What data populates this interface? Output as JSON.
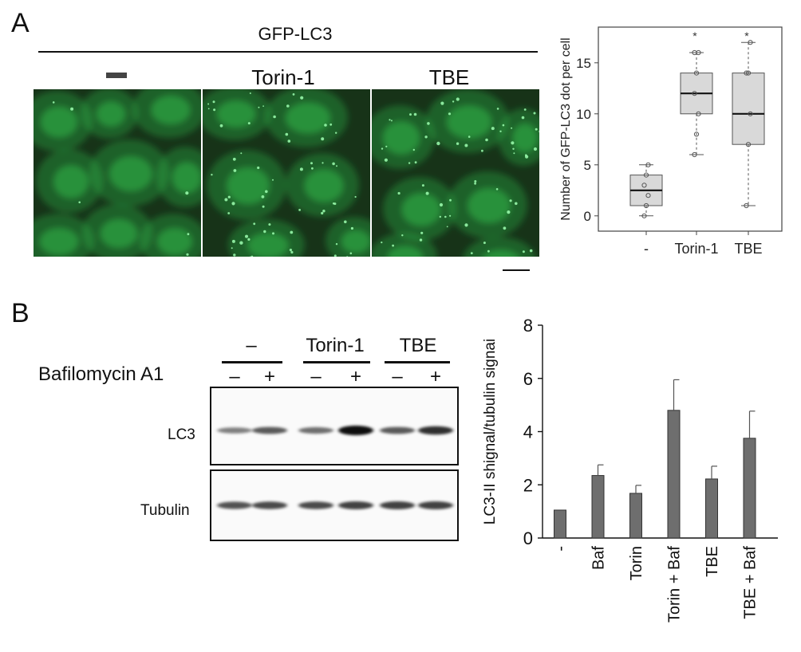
{
  "panelA": {
    "letter": "A",
    "header": "GFP-LC3",
    "conditions": [
      {
        "label": "",
        "symbol": "dash"
      },
      {
        "label": "Torin-1"
      },
      {
        "label": "TBE"
      }
    ],
    "colors": {
      "gfp": "#2fb84a",
      "background": "#173318"
    }
  },
  "panelB": {
    "letter": "B",
    "treatments": [
      "–",
      "Torin-1",
      "TBE"
    ],
    "bafilomycin_label": "Bafilomycin A1",
    "signs": [
      "–",
      "+",
      "–",
      "+",
      "–",
      "+"
    ],
    "blot_labels": {
      "lc3": "LC3",
      "tubulin": "Tubulin"
    },
    "lc3_band_intensity": [
      0.35,
      0.55,
      0.45,
      1.0,
      0.55,
      0.8
    ],
    "tubulin_band_intensity": [
      0.6,
      0.65,
      0.65,
      0.7,
      0.7,
      0.7
    ]
  },
  "chart_data": [
    {
      "type": "box",
      "ylabel": "Number of GFP-LC3 dot per cell",
      "categories": [
        "-",
        "Torin-1",
        "TBE"
      ],
      "ylim": [
        -1.5,
        18.5
      ],
      "yticks": [
        0,
        5,
        10,
        15
      ],
      "boxes": [
        {
          "min": 0,
          "q1": 1,
          "median": 2.5,
          "q3": 4,
          "max": 5,
          "significance": ""
        },
        {
          "min": 6,
          "q1": 10,
          "median": 12,
          "q3": 14,
          "max": 16,
          "significance": "*"
        },
        {
          "min": 1,
          "q1": 7,
          "median": 10,
          "q3": 14,
          "max": 17,
          "significance": "*"
        }
      ],
      "points": [
        [
          0,
          1,
          2,
          3,
          4,
          5
        ],
        [
          6,
          8,
          10,
          12,
          14,
          16,
          16
        ],
        [
          1,
          7,
          10,
          14,
          14,
          17
        ]
      ],
      "colors": {
        "box": "#d9d9d9",
        "stroke": "#555555"
      }
    },
    {
      "type": "bar",
      "ylabel": "LC3-II shignal/tubulin signai",
      "categories": [
        "-",
        "Baf",
        "Torin",
        "Torin + Baf",
        "TBE",
        "TBE + Baf"
      ],
      "values": [
        1.05,
        2.35,
        1.68,
        4.8,
        2.22,
        3.75
      ],
      "errors": [
        0,
        0.4,
        0.3,
        1.15,
        0.48,
        1.02
      ],
      "ylim": [
        0,
        8
      ],
      "yticks": [
        0,
        2,
        4,
        6,
        8
      ],
      "colors": {
        "bar": "#6e6e6e"
      }
    }
  ]
}
